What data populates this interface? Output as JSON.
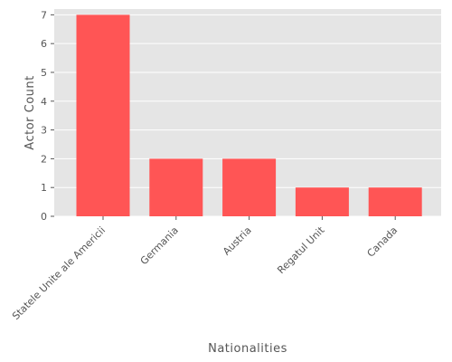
{
  "chart_data": {
    "type": "bar",
    "title": "",
    "xlabel": "Nationalities",
    "ylabel": "Actor Count",
    "categories": [
      "Statele Unite ale Americii",
      "Germania",
      "Austria",
      "Regatul Unit",
      "Canada"
    ],
    "values": [
      7,
      2,
      2,
      1,
      1
    ],
    "ylim": [
      0,
      7.2
    ],
    "yticks": [
      0,
      1,
      2,
      3,
      4,
      5,
      6,
      7
    ],
    "grid": true,
    "colors": {
      "bar": "#ff5555",
      "background": "#e5e5e5",
      "grid": "#ffffff",
      "text": "#555555"
    }
  }
}
